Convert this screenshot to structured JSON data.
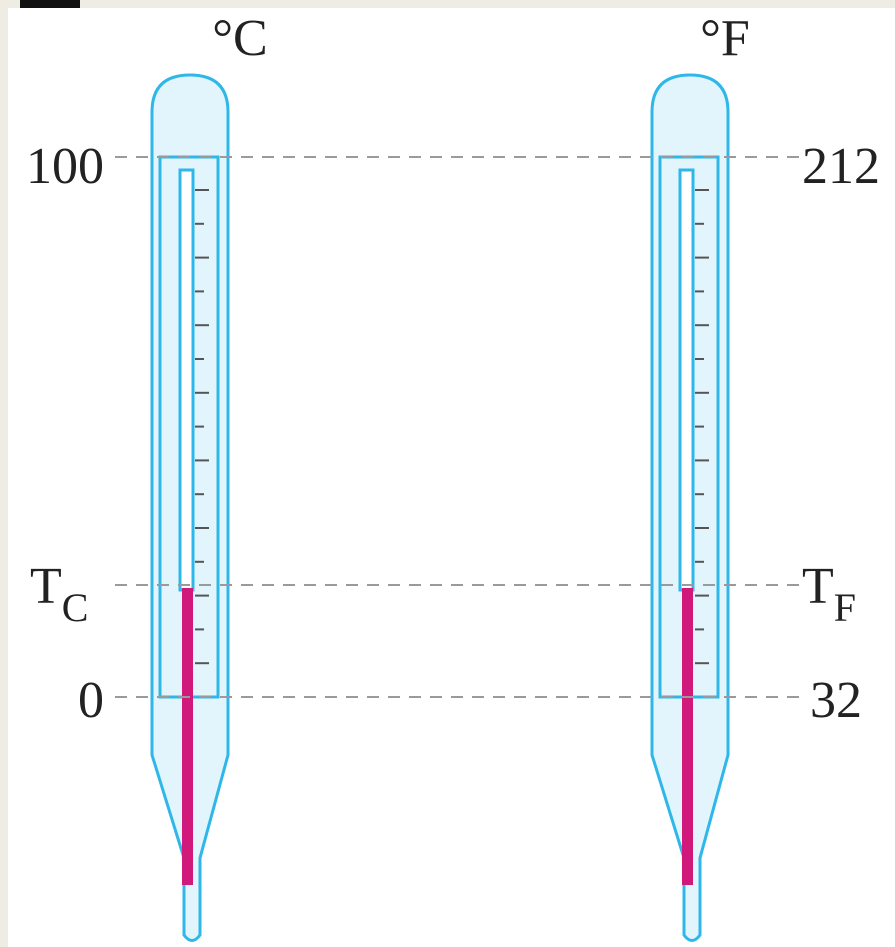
{
  "thermometers": [
    {
      "unit": "°C",
      "top": "100",
      "reading": {
        "symbol": "T",
        "subscript": "C"
      },
      "bottom": "0"
    },
    {
      "unit": "°F",
      "top": "212",
      "reading": {
        "symbol": "T",
        "subscript": "F"
      },
      "bottom": "32"
    }
  ]
}
